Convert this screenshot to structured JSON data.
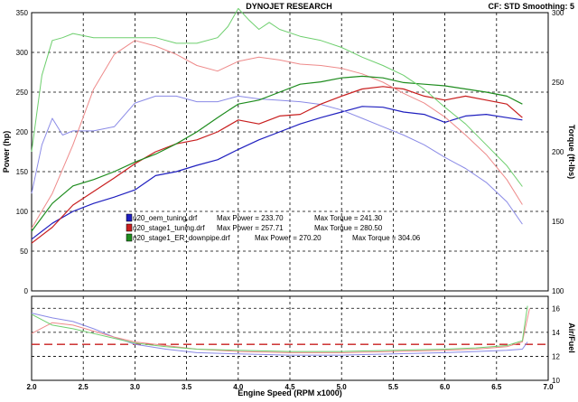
{
  "header": {
    "title": "DYNOJET RESEARCH",
    "settings": "CF: STD  Smoothing: 5"
  },
  "chart_data": [
    {
      "type": "line",
      "panel": "power_torque",
      "title": "DYNOJET RESEARCH",
      "xlabel": "Engine Speed (RPM x1000)",
      "ylabel_left": "Power (hp)",
      "ylabel_right": "Torque (ft-lbs)",
      "xlim": [
        2.0,
        7.0
      ],
      "ylim_left": [
        0,
        350
      ],
      "ylim_right": [
        100,
        300
      ],
      "x_ticks": [
        "2.0",
        "2.5",
        "3.0",
        "3.5",
        "4.0",
        "4.5",
        "5.0",
        "5.5",
        "6.0",
        "6.5",
        "7.0"
      ],
      "y_ticks_left": [
        "0",
        "50",
        "100",
        "150",
        "200",
        "250",
        "300",
        "350"
      ],
      "y_ticks_right": [
        "100",
        "150",
        "200",
        "250",
        "300"
      ],
      "grid": true,
      "legend": [
        {
          "run": "n20_oem_tuning.drf",
          "max_power_label": "Max Power = 233.70",
          "max_torque_label": "Max Torque = 241.30",
          "color": "#1f1fbf"
        },
        {
          "run": "n20_stage1_tuning.drf",
          "max_power_label": "Max Power = 257.71",
          "max_torque_label": "Max Torque = 280.50",
          "color": "#c81e1e"
        },
        {
          "run": "n20_stage1_ER_downpipe.drf",
          "max_power_label": "Max Power = 270.20",
          "max_torque_label": "Max Torque = 304.06",
          "color": "#1e8c1e"
        }
      ],
      "series": [
        {
          "name": "n20_oem_tuning.drf",
          "measure": "power",
          "axis": "left",
          "color": "#1f1fbf",
          "x": [
            2.0,
            2.2,
            2.4,
            2.6,
            2.8,
            3.0,
            3.2,
            3.4,
            3.6,
            3.8,
            4.0,
            4.2,
            4.4,
            4.6,
            4.8,
            5.0,
            5.2,
            5.4,
            5.6,
            5.8,
            6.0,
            6.2,
            6.4,
            6.6,
            6.75
          ],
          "y": [
            65,
            85,
            100,
            110,
            118,
            127,
            145,
            150,
            158,
            165,
            178,
            190,
            200,
            210,
            218,
            225,
            232,
            231,
            225,
            222,
            212,
            220,
            222,
            218,
            215
          ]
        },
        {
          "name": "n20_oem_tuning.drf",
          "measure": "torque",
          "axis": "right",
          "color": "#8a8ae6",
          "x": [
            2.0,
            2.1,
            2.2,
            2.3,
            2.4,
            2.6,
            2.8,
            3.0,
            3.2,
            3.4,
            3.6,
            3.8,
            4.0,
            4.2,
            4.4,
            4.6,
            4.8,
            5.0,
            5.2,
            5.4,
            5.6,
            5.8,
            6.0,
            6.2,
            6.4,
            6.6,
            6.75
          ],
          "y": [
            170,
            205,
            224,
            212,
            215,
            215,
            218,
            235,
            240,
            240,
            236,
            236,
            240,
            238,
            237,
            236,
            234,
            230,
            224,
            218,
            212,
            205,
            196,
            188,
            178,
            164,
            148
          ]
        },
        {
          "name": "n20_stage1_tuning.drf",
          "measure": "power",
          "axis": "left",
          "color": "#c81e1e",
          "x": [
            2.0,
            2.2,
            2.4,
            2.6,
            2.8,
            3.0,
            3.2,
            3.4,
            3.6,
            3.8,
            4.0,
            4.2,
            4.4,
            4.6,
            4.8,
            5.0,
            5.2,
            5.4,
            5.6,
            5.8,
            6.0,
            6.2,
            6.4,
            6.6,
            6.75
          ],
          "y": [
            60,
            80,
            108,
            125,
            142,
            160,
            175,
            185,
            190,
            200,
            215,
            210,
            220,
            222,
            235,
            245,
            254,
            257,
            254,
            245,
            240,
            245,
            240,
            235,
            218
          ]
        },
        {
          "name": "n20_stage1_tuning.drf",
          "measure": "torque",
          "axis": "right",
          "color": "#ee8a8a",
          "x": [
            2.0,
            2.2,
            2.4,
            2.6,
            2.8,
            3.0,
            3.2,
            3.4,
            3.6,
            3.8,
            4.0,
            4.2,
            4.4,
            4.6,
            4.8,
            5.0,
            5.2,
            5.4,
            5.6,
            5.8,
            6.0,
            6.2,
            6.4,
            6.6,
            6.75
          ],
          "y": [
            145,
            170,
            205,
            245,
            270,
            280,
            276,
            270,
            262,
            258,
            265,
            268,
            266,
            263,
            262,
            260,
            256,
            250,
            242,
            235,
            225,
            212,
            198,
            180,
            162
          ]
        },
        {
          "name": "n20_stage1_ER_downpipe.drf",
          "measure": "power",
          "axis": "left",
          "color": "#1e8c1e",
          "x": [
            2.0,
            2.2,
            2.4,
            2.6,
            2.8,
            3.0,
            3.2,
            3.4,
            3.6,
            3.8,
            4.0,
            4.2,
            4.4,
            4.6,
            4.8,
            5.0,
            5.2,
            5.4,
            5.6,
            5.8,
            6.0,
            6.2,
            6.4,
            6.6,
            6.75
          ],
          "y": [
            75,
            110,
            132,
            140,
            150,
            162,
            172,
            185,
            200,
            218,
            235,
            240,
            250,
            260,
            263,
            268,
            270,
            268,
            262,
            260,
            258,
            254,
            250,
            245,
            235
          ]
        },
        {
          "name": "n20_stage1_ER_downpipe.drf",
          "measure": "torque",
          "axis": "right",
          "color": "#6ecf6e",
          "x": [
            2.0,
            2.1,
            2.2,
            2.3,
            2.4,
            2.6,
            2.8,
            3.0,
            3.2,
            3.4,
            3.6,
            3.8,
            3.9,
            4.0,
            4.1,
            4.2,
            4.3,
            4.4,
            4.6,
            4.8,
            5.0,
            5.2,
            5.4,
            5.6,
            5.8,
            6.0,
            6.2,
            6.4,
            6.6,
            6.75
          ],
          "y": [
            200,
            255,
            280,
            282,
            285,
            282,
            282,
            282,
            282,
            278,
            278,
            282,
            290,
            303,
            295,
            288,
            293,
            288,
            283,
            280,
            275,
            268,
            262,
            255,
            245,
            232,
            220,
            205,
            190,
            175
          ]
        }
      ]
    },
    {
      "type": "line",
      "panel": "air_fuel",
      "ylabel_right": "Air/Fuel",
      "xlabel": "Engine Speed (RPM x1000)",
      "xlim": [
        2.0,
        7.0
      ],
      "ylim_right": [
        10,
        17
      ],
      "y_ticks_right": [
        "10",
        "12",
        "14",
        "16"
      ],
      "grid": true,
      "reference_line": {
        "value": 13.0,
        "color": "#c81e1e",
        "style": "dashed"
      },
      "series": [
        {
          "name": "n20_oem_tuning.drf",
          "color": "#8a8ae6",
          "x": [
            2.0,
            2.2,
            2.4,
            2.6,
            2.8,
            3.0,
            3.3,
            3.6,
            4.0,
            4.5,
            5.0,
            5.5,
            6.0,
            6.3,
            6.6,
            6.75,
            6.8
          ],
          "y": [
            15.6,
            15.2,
            14.9,
            14.3,
            13.6,
            13.0,
            12.6,
            12.3,
            12.2,
            12.1,
            12.1,
            12.2,
            12.3,
            12.4,
            12.5,
            12.6,
            13.2
          ]
        },
        {
          "name": "n20_stage1_tuning.drf",
          "color": "#ee8a8a",
          "x": [
            2.0,
            2.2,
            2.4,
            2.6,
            2.8,
            3.0,
            3.3,
            3.6,
            4.0,
            4.5,
            5.0,
            5.5,
            6.0,
            6.3,
            6.6,
            6.75,
            6.82
          ],
          "y": [
            13.9,
            14.8,
            14.6,
            14.1,
            13.6,
            13.2,
            12.9,
            12.6,
            12.4,
            12.3,
            12.3,
            12.4,
            12.5,
            12.6,
            12.8,
            13.2,
            16.0
          ]
        },
        {
          "name": "n20_stage1_ER_downpipe.drf",
          "color": "#6ecf6e",
          "x": [
            2.0,
            2.2,
            2.4,
            2.6,
            2.8,
            3.0,
            3.3,
            3.6,
            4.0,
            4.5,
            5.0,
            5.5,
            6.0,
            6.3,
            6.6,
            6.75,
            6.8
          ],
          "y": [
            15.5,
            14.6,
            14.3,
            13.9,
            13.5,
            13.1,
            12.8,
            12.6,
            12.5,
            12.4,
            12.4,
            12.5,
            12.6,
            12.7,
            12.9,
            13.3,
            16.2
          ]
        }
      ]
    }
  ]
}
